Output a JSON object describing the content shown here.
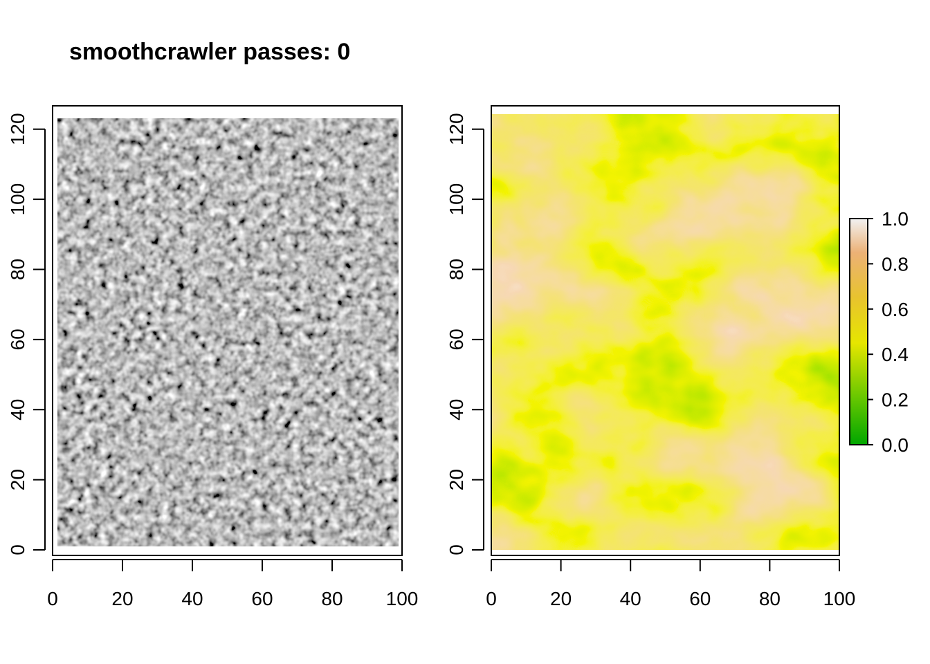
{
  "title": "smoothcrawler passes: 0",
  "chart_data": [
    {
      "type": "heatmap",
      "panel": "left",
      "description_of_fill": "grayscale hillshade of noisy raster",
      "xlim": [
        0,
        100
      ],
      "ylim": [
        0,
        125
      ],
      "xticks": [
        0,
        20,
        40,
        60,
        80,
        100
      ],
      "yticks": [
        0,
        20,
        40,
        60,
        80,
        100,
        120
      ],
      "raster_extent": {
        "x": [
          1,
          99
        ],
        "y": [
          1,
          123
        ]
      },
      "colors": {
        "dark": "#1e1e1e",
        "light": "#f4f4f4"
      }
    },
    {
      "type": "heatmap",
      "panel": "right",
      "xlim": [
        0,
        100
      ],
      "ylim": [
        0,
        125
      ],
      "xticks": [
        0,
        20,
        40,
        60,
        80,
        100
      ],
      "yticks": [
        0,
        20,
        40,
        60,
        80,
        100,
        120
      ],
      "raster_extent": {
        "x": [
          0,
          100
        ],
        "y": [
          0,
          124
        ]
      },
      "value_range": [
        0,
        1
      ],
      "legend": {
        "position": "right",
        "ticks": [
          "0.0",
          "0.2",
          "0.4",
          "0.6",
          "0.8",
          "1.0"
        ],
        "tick_values": [
          0,
          0.2,
          0.4,
          0.6,
          0.8,
          1.0
        ]
      },
      "palette": [
        "#00a600",
        "#63c600",
        "#e6e600",
        "#e8c32e",
        "#ecb176",
        "#f2f2f2"
      ]
    }
  ]
}
